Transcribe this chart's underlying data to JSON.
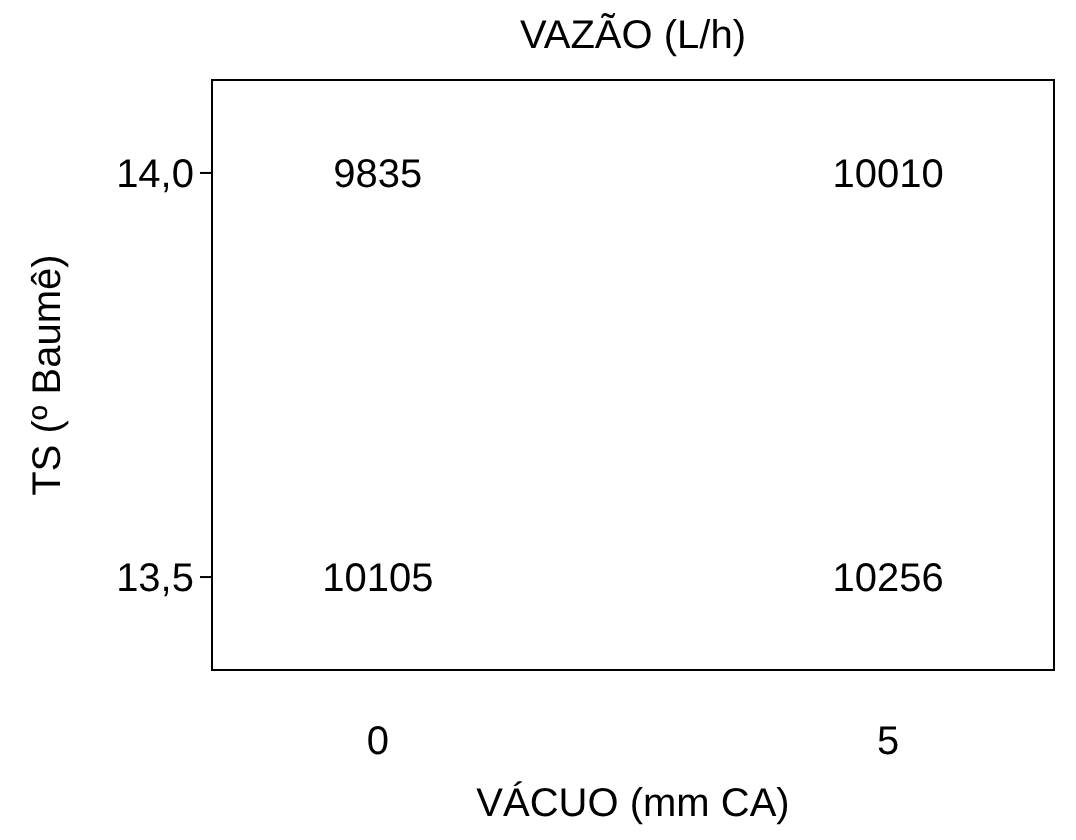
{
  "chart_data": {
    "type": "heatmap",
    "title": "VAZÃO (L/h)",
    "xlabel": "VÁCUO (mm CA)",
    "ylabel": "TS (º Baumê)",
    "categories": [
      "0",
      "5"
    ],
    "y_categories": [
      "14,0",
      "13,5"
    ],
    "cells": [
      [
        9835,
        10010
      ],
      [
        10105,
        10256
      ]
    ],
    "data_labels": true
  }
}
